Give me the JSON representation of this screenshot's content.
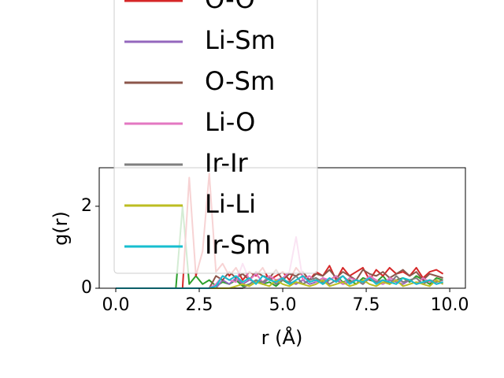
{
  "chart_data": {
    "type": "line",
    "xlabel": "r (Å)",
    "ylabel": "g(r)",
    "x": [
      0,
      0.2,
      0.4,
      0.6,
      0.8,
      1,
      1.2,
      1.4,
      1.6,
      1.8,
      2,
      2.2,
      2.4,
      2.6,
      2.8,
      3,
      3.2,
      3.4,
      3.6,
      3.8,
      4,
      4.2,
      4.4,
      4.6,
      4.8,
      5,
      5.2,
      5.4,
      5.6,
      5.8,
      6,
      6.2,
      6.4,
      6.6,
      6.8,
      7,
      7.2,
      7.4,
      7.6,
      7.8,
      8,
      8.2,
      8.4,
      8.6,
      8.8,
      9,
      9.2,
      9.4,
      9.6,
      9.8
    ],
    "xlim": [
      -0.495,
      10.47
    ],
    "xticks": [
      {
        "value": 0,
        "label": "0.0"
      },
      {
        "value": 2.5,
        "label": "2.5"
      },
      {
        "value": 5,
        "label": "5.0"
      },
      {
        "value": 7.5,
        "label": "7.5"
      },
      {
        "value": 10,
        "label": "10.0"
      }
    ],
    "ylim": [
      0,
      2.94
    ],
    "yticks": [
      0,
      2
    ],
    "series": [
      {
        "color": "#2ca02c",
        "values": [
          0,
          0,
          0,
          0,
          0,
          0,
          0,
          0,
          0,
          0,
          2.0,
          0.1,
          0.3,
          0.1,
          0.2,
          0.05,
          0.15,
          0.1,
          0.2,
          0.05,
          0.1,
          0.2,
          0.1,
          0.15,
          0.05,
          0.2,
          0.1,
          0.15,
          0.1,
          0.2,
          0.25,
          0.1,
          0.2,
          0.3,
          0.15,
          0.2,
          0.1,
          0.25,
          0.2,
          0.15,
          0.3,
          0.1,
          0.2,
          0.25,
          0.15,
          0.3,
          0.2,
          0.1,
          0.25,
          0.2
        ]
      },
      {
        "name": "O-O",
        "color": "#d62728",
        "values": [
          0,
          0,
          0,
          0,
          0,
          0,
          0,
          0,
          0,
          0,
          0,
          2.7,
          0.3,
          0.9,
          2.8,
          0.4,
          0.6,
          0.3,
          0.5,
          0.2,
          0.4,
          0.3,
          0.5,
          0.2,
          0.3,
          0.4,
          0.2,
          0.5,
          0.3,
          0.2,
          0.4,
          0.3,
          0.55,
          0.2,
          0.5,
          0.3,
          0.4,
          0.5,
          0.2,
          0.45,
          0.3,
          0.5,
          0.35,
          0.4,
          0.3,
          0.5,
          0.25,
          0.4,
          0.45,
          0.35
        ]
      },
      {
        "name": "Li-Sm",
        "color": "#9467bd",
        "values": [
          0,
          0,
          0,
          0,
          0,
          0,
          0,
          0,
          0,
          0,
          0,
          0,
          0,
          0,
          0,
          0,
          0.2,
          0.1,
          0.25,
          0.1,
          0.2,
          0.15,
          0.1,
          0.25,
          0.1,
          0.2,
          0.15,
          0.1,
          0.2,
          0.1,
          0.15,
          0.25,
          0.1,
          0.2,
          0.1,
          0.15,
          0.2,
          0.1,
          0.25,
          0.15,
          0.1,
          0.2,
          0.15,
          0.1,
          0.2,
          0.1,
          0.15,
          0.2,
          0.1,
          0.15
        ]
      },
      {
        "name": "O-Sm",
        "color": "#8c564b",
        "values": [
          0,
          0,
          0,
          0,
          0,
          0,
          0,
          0,
          0,
          0,
          0,
          0,
          0,
          0,
          0,
          0.3,
          0.2,
          0.4,
          0.25,
          0.35,
          0.2,
          0.4,
          0.3,
          0.25,
          0.45,
          0.2,
          0.35,
          0.3,
          0.4,
          0.2,
          0.35,
          0.3,
          0.45,
          0.25,
          0.4,
          0.3,
          0.2,
          0.45,
          0.35,
          0.3,
          0.4,
          0.25,
          0.35,
          0.45,
          0.3,
          0.4,
          0.2,
          0.35,
          0.3,
          0.25
        ]
      },
      {
        "name": "Li-O",
        "color": "#e377c2",
        "values": [
          0,
          0,
          0,
          0,
          0,
          0,
          0,
          0,
          0,
          0,
          0,
          0,
          0,
          0,
          0,
          0.1,
          0.3,
          0.2,
          0.15,
          0.6,
          0.2,
          0.35,
          0.15,
          0.3,
          0.2,
          0.25,
          0.4,
          1.25,
          0.2,
          0.3,
          0.15,
          0.25,
          0.2,
          0.3,
          0.1,
          0.25,
          0.2,
          0.15,
          0.3,
          0.2,
          0.1,
          0.25,
          0.2,
          0.15,
          0.2,
          0.1,
          0.25,
          0.15,
          0.2,
          0.1
        ]
      },
      {
        "name": "Ir-Ir",
        "color": "#7f7f7f",
        "values": [
          0,
          0,
          0,
          0,
          0,
          0,
          0,
          0,
          0,
          0,
          0,
          0,
          0,
          0,
          0,
          0,
          0,
          0,
          0,
          0,
          0.1,
          0.2,
          0.15,
          0.25,
          0.1,
          0.2,
          0.15,
          0.3,
          0.1,
          0.2,
          0.25,
          0.15,
          0.1,
          0.2,
          0.3,
          0.15,
          0.2,
          0.1,
          0.25,
          0.15,
          0.2,
          0.1,
          0.3,
          0.15,
          0.2,
          0.25,
          0.1,
          0.2,
          0.15,
          0.2
        ]
      },
      {
        "name": "Li-Li",
        "color": "#bcbd22",
        "values": [
          0,
          0,
          0,
          0,
          0,
          0,
          0,
          0,
          0,
          0,
          0,
          0,
          0,
          0,
          0,
          0,
          0,
          0,
          0.05,
          0.1,
          0.05,
          0.15,
          0.1,
          0.05,
          0.2,
          0.1,
          0.05,
          0.15,
          0.1,
          0.05,
          0.1,
          0.2,
          0.05,
          0.1,
          0.15,
          0.05,
          0.1,
          0.2,
          0.1,
          0.05,
          0.15,
          0.1,
          0.2,
          0.05,
          0.1,
          0.15,
          0.1,
          0.05,
          0.2,
          0.1
        ]
      },
      {
        "name": "Ir-Sm",
        "color": "#17becf",
        "values": [
          0,
          0,
          0,
          0,
          0,
          0,
          0,
          0,
          0,
          0,
          0,
          0,
          0,
          0,
          0,
          0.05,
          0.3,
          0.2,
          0.3,
          0.15,
          0.25,
          0.1,
          0.3,
          0.2,
          0.15,
          0.25,
          0.1,
          0.2,
          0.3,
          0.15,
          0.2,
          0.1,
          0.25,
          0.15,
          0.3,
          0.1,
          0.2,
          0.15,
          0.25,
          0.1,
          0.2,
          0.15,
          0.1,
          0.25,
          0.2,
          0.1,
          0.15,
          0.2,
          0.1,
          0.15
        ]
      }
    ]
  }
}
